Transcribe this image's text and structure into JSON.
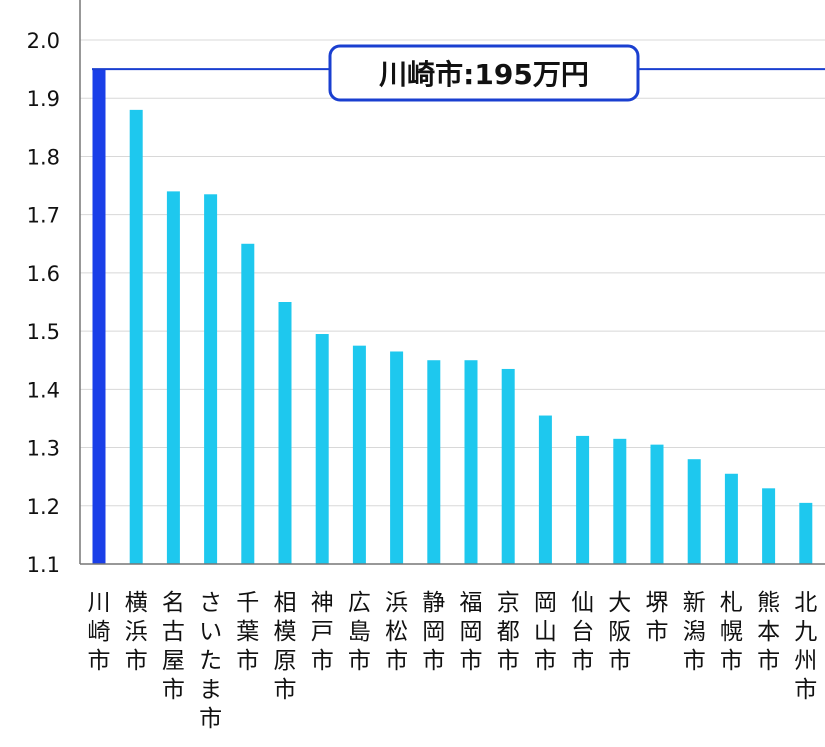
{
  "chart_data": {
    "type": "bar",
    "categories": [
      "川崎市",
      "横浜市",
      "名古屋市",
      "さいたま市",
      "千葉市",
      "相模原市",
      "神戸市",
      "広島市",
      "浜松市",
      "静岡市",
      "福岡市",
      "京都市",
      "岡山市",
      "仙台市",
      "大阪市",
      "堺市",
      "新潟市",
      "札幌市",
      "熊本市",
      "北九州市"
    ],
    "values": [
      1.95,
      1.88,
      1.74,
      1.735,
      1.65,
      1.55,
      1.495,
      1.475,
      1.465,
      1.45,
      1.45,
      1.435,
      1.355,
      1.32,
      1.315,
      1.305,
      1.28,
      1.255,
      1.23,
      1.205
    ],
    "highlight_index": 0,
    "ylim": [
      1.1,
      2.0
    ],
    "yticks": [
      "2.0",
      "1.9",
      "1.8",
      "1.7",
      "1.6",
      "1.5",
      "1.4",
      "1.3",
      "1.2",
      "1.1"
    ],
    "grid": true,
    "colors": {
      "highlight": "#1a3fe8",
      "bar": "#1ec8ee",
      "annotation": "#1a3fd0",
      "grid": "#d8d8d8"
    },
    "annotation": {
      "text": "川崎市:195万円",
      "value": 1.95
    }
  }
}
